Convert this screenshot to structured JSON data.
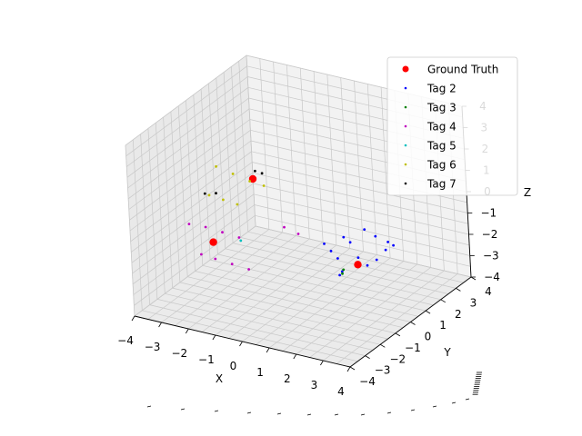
{
  "chart_data": {
    "type": "scatter",
    "title": "",
    "xlabel": "X",
    "ylabel": "Y",
    "zlabel": "Z",
    "xlim": [
      -4,
      4
    ],
    "ylim": [
      -4,
      4
    ],
    "zlim": [
      -4,
      4
    ],
    "x_ticks": [
      "−4",
      "−3",
      "−2",
      "−1",
      "0",
      "1",
      "2",
      "3",
      "4"
    ],
    "y_ticks": [
      "−4",
      "−3",
      "−2",
      "−1",
      "0",
      "1",
      "2",
      "3",
      "4"
    ],
    "z_ticks": [
      "−4",
      "−3",
      "−2",
      "−1",
      "0",
      "1",
      "2",
      "3",
      "4"
    ],
    "grid": true,
    "legend_position": "top-right",
    "series": [
      {
        "name": "Ground Truth",
        "color": "#ff0000",
        "marker": "large-dot",
        "points": [
          [
            -2.9,
            -0.6,
            -2.0
          ],
          [
            1.6,
            0.9,
            -2.5
          ],
          [
            -2.0,
            0.6,
            0.6
          ]
        ]
      },
      {
        "name": "Tag 2",
        "color": "#0000ff",
        "marker": "small-dot",
        "points": [
          [
            0.2,
            1.2,
            -2.1
          ],
          [
            0.5,
            1.1,
            -2.3
          ],
          [
            0.8,
            1.0,
            -2.5
          ],
          [
            1.0,
            1.1,
            -1.5
          ],
          [
            1.3,
            1.0,
            -1.6
          ],
          [
            1.6,
            0.95,
            -2.2
          ],
          [
            1.9,
            1.0,
            -2.5
          ],
          [
            2.2,
            1.1,
            -2.2
          ],
          [
            2.5,
            1.2,
            -1.7
          ],
          [
            2.8,
            1.2,
            -1.4
          ],
          [
            1.8,
            1.1,
            -0.9
          ],
          [
            2.2,
            1.1,
            -1.1
          ],
          [
            2.6,
            1.2,
            -1.3
          ],
          [
            0.9,
            0.9,
            -3.2
          ],
          [
            1.0,
            0.9,
            -3.0
          ]
        ]
      },
      {
        "name": "Tag 3",
        "color": "#008000",
        "marker": "small-dot",
        "points": [
          [
            1.0,
            0.9,
            -3.1
          ],
          [
            1.05,
            0.9,
            -2.9
          ]
        ]
      },
      {
        "name": "Tag 4",
        "color": "#bf00bf",
        "marker": "small-dot",
        "points": [
          [
            -3.6,
            -0.9,
            -1.2
          ],
          [
            -3.1,
            -0.7,
            -1.3
          ],
          [
            -2.6,
            -0.5,
            -1.5
          ],
          [
            -2.1,
            -0.3,
            -1.7
          ],
          [
            -3.2,
            -0.9,
            -2.5
          ],
          [
            -2.8,
            -0.7,
            -2.7
          ],
          [
            -2.3,
            -0.5,
            -2.9
          ],
          [
            -1.8,
            -0.3,
            -3.1
          ],
          [
            -0.8,
            0.4,
            -1.2
          ],
          [
            -0.4,
            0.6,
            -1.5
          ]
        ]
      },
      {
        "name": "Tag 5",
        "color": "#00bfbf",
        "marker": "small-dot",
        "points": [
          [
            -2.1,
            -0.2,
            -1.9
          ]
        ]
      },
      {
        "name": "Tag 6",
        "color": "#bfbf00",
        "marker": "small-dot",
        "points": [
          [
            -3.0,
            0.0,
            1.2
          ],
          [
            -2.5,
            0.2,
            0.9
          ],
          [
            -2.0,
            0.4,
            0.6
          ],
          [
            -1.6,
            0.6,
            0.4
          ],
          [
            -3.2,
            -0.2,
            -0.1
          ],
          [
            -2.8,
            0.0,
            -0.3
          ],
          [
            -2.4,
            0.2,
            -0.5
          ]
        ]
      },
      {
        "name": "Tag 7",
        "color": "#000000",
        "marker": "small-dot",
        "points": [
          [
            -1.9,
            0.6,
            1.0
          ],
          [
            -1.7,
            0.7,
            0.9
          ],
          [
            -3.3,
            -0.3,
            0.0
          ],
          [
            -3.0,
            -0.1,
            0.0
          ]
        ]
      }
    ]
  }
}
